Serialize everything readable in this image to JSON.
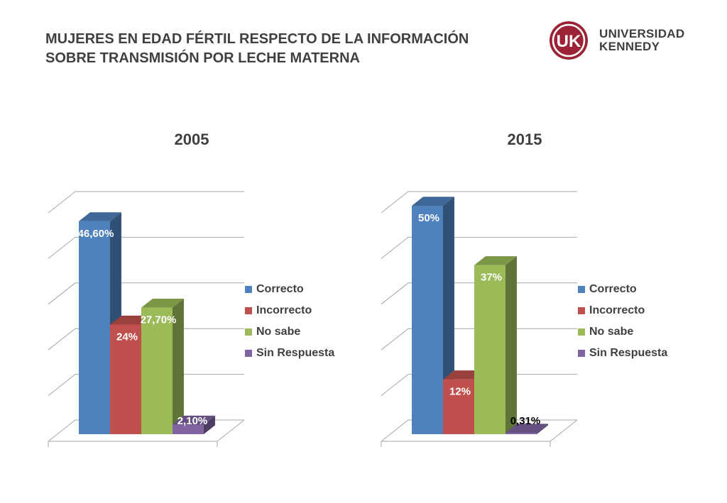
{
  "title_lines": [
    "MUJERES EN EDAD FÉRTIL RESPECTO DE LA INFORMACIÓN",
    "SOBRE TRANSMISIÓN POR LECHE MATERNA"
  ],
  "logo": {
    "mark": "UK",
    "line1": "UNIVERSIDAD",
    "line2": "KENNEDY",
    "color": "#9b2335"
  },
  "chart_data": [
    {
      "type": "bar",
      "title": "2005",
      "categories": [
        "Correcto",
        "Incorrecto",
        "No sabe",
        "Sin Respuesta"
      ],
      "values": [
        46.6,
        24,
        27.7,
        2.1
      ],
      "data_labels": [
        "46,60%",
        "24%",
        "27,70%",
        "2,10%"
      ],
      "colors": [
        "#4f81bd",
        "#c0504d",
        "#9bbb59",
        "#8064a2"
      ],
      "ylim": [
        0,
        50
      ],
      "legend": "right"
    },
    {
      "type": "bar",
      "title": "2015",
      "categories": [
        "Correcto",
        "Incorrecto",
        "No sabe",
        "Sin Respuesta"
      ],
      "values": [
        50,
        12,
        37,
        0.31
      ],
      "data_labels": [
        "50%",
        "12%",
        "37%",
        "0,31%"
      ],
      "colors": [
        "#4f81bd",
        "#c0504d",
        "#9bbb59",
        "#8064a2"
      ],
      "ylim": [
        0,
        50
      ],
      "legend": "right"
    }
  ]
}
